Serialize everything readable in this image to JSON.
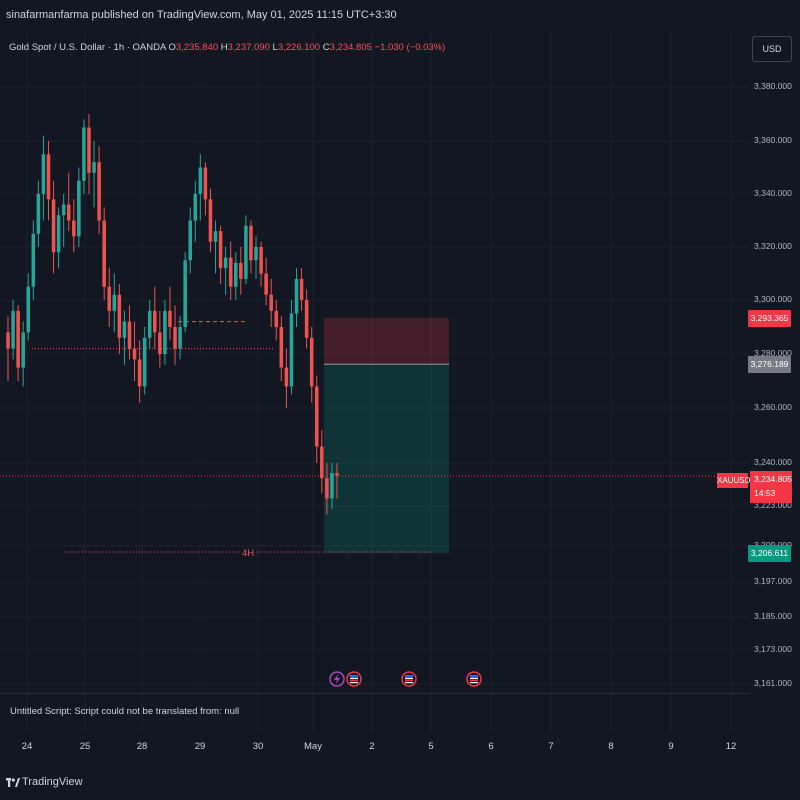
{
  "publisher": "sinafarmanfarma published on TradingView.com, May 01, 2025 11:15 UTC+3:30",
  "legend": {
    "title": "Gold Spot / U.S. Dollar · 1h · OANDA",
    "o_label": "O",
    "o_value": "3,235.840",
    "h_label": "H",
    "h_value": "3,237.090",
    "l_label": "L",
    "l_value": "3,226.100",
    "c_label": "C",
    "c_value": "3,234.805",
    "change": "−1.030 (−0.03%)"
  },
  "currency_button": "USD",
  "script_message": "Untitled Script: Script could not be translated from: null",
  "brand": "TradingView",
  "annotation_4h": "4H",
  "symbol_tag": "XAUUSD",
  "price_tag": {
    "price": "3,234.805",
    "countdown": "14:53"
  },
  "level_tags": [
    {
      "label": "3,293.365",
      "color": "#f23645"
    },
    {
      "label": "3,276.189",
      "color": "#787b86"
    },
    {
      "label": "3,206.611",
      "color": "#089981"
    }
  ],
  "colors": {
    "up": "#26a69a",
    "down": "#ef5350",
    "background": "#131722",
    "grid": "#1e222d"
  },
  "chart_data": {
    "type": "candlestick",
    "title": "Gold Spot / U.S. Dollar · 1h · OANDA",
    "y_ticks": [
      "3,380.000",
      "3,360.000",
      "3,340.000",
      "3,320.000",
      "3,300.000",
      "3,280.000",
      "3,260.000",
      "3,240.000",
      "3,223.000",
      "3,209.000",
      "3,197.000",
      "3,185.000",
      "3,173.000",
      "3,161.000"
    ],
    "x_ticks": [
      "24",
      "25",
      "28",
      "29",
      "30",
      "May",
      "2",
      "5",
      "6",
      "7",
      "8",
      "9",
      "12"
    ],
    "ylim": [
      3161,
      3386
    ],
    "last_price": 3234.805,
    "position": {
      "stop": 3293.365,
      "entry": 3276.189,
      "target": 3206.611
    },
    "levels": [
      {
        "value": 3292,
        "style": "dashed-short"
      },
      {
        "value": 3282,
        "style": "dotted"
      },
      {
        "value": 3207,
        "style": "dotted",
        "label": "4H"
      }
    ],
    "candles": [
      [
        3288,
        3294,
        3270,
        3282
      ],
      [
        3282,
        3300,
        3278,
        3296
      ],
      [
        3296,
        3298,
        3270,
        3275
      ],
      [
        3275,
        3292,
        3268,
        3288
      ],
      [
        3288,
        3310,
        3285,
        3305
      ],
      [
        3305,
        3330,
        3300,
        3325
      ],
      [
        3325,
        3345,
        3320,
        3340
      ],
      [
        3340,
        3362,
        3330,
        3355
      ],
      [
        3355,
        3360,
        3330,
        3338
      ],
      [
        3338,
        3345,
        3310,
        3318
      ],
      [
        3318,
        3335,
        3312,
        3332
      ],
      [
        3332,
        3340,
        3320,
        3336
      ],
      [
        3336,
        3348,
        3326,
        3330
      ],
      [
        3330,
        3338,
        3318,
        3324
      ],
      [
        3324,
        3350,
        3320,
        3345
      ],
      [
        3345,
        3368,
        3340,
        3365
      ],
      [
        3365,
        3370,
        3340,
        3348
      ],
      [
        3348,
        3360,
        3335,
        3352
      ],
      [
        3352,
        3358,
        3325,
        3330
      ],
      [
        3330,
        3335,
        3300,
        3305
      ],
      [
        3305,
        3312,
        3290,
        3296
      ],
      [
        3296,
        3310,
        3288,
        3302
      ],
      [
        3302,
        3306,
        3280,
        3286
      ],
      [
        3286,
        3296,
        3276,
        3292
      ],
      [
        3292,
        3298,
        3278,
        3282
      ],
      [
        3282,
        3292,
        3270,
        3278
      ],
      [
        3278,
        3285,
        3262,
        3268
      ],
      [
        3268,
        3290,
        3265,
        3286
      ],
      [
        3286,
        3300,
        3282,
        3296
      ],
      [
        3296,
        3305,
        3282,
        3288
      ],
      [
        3288,
        3296,
        3275,
        3280
      ],
      [
        3280,
        3300,
        3276,
        3296
      ],
      [
        3296,
        3305,
        3285,
        3290
      ],
      [
        3290,
        3298,
        3276,
        3282
      ],
      [
        3282,
        3294,
        3278,
        3290
      ],
      [
        3290,
        3318,
        3288,
        3315
      ],
      [
        3315,
        3335,
        3310,
        3330
      ],
      [
        3330,
        3345,
        3322,
        3340
      ],
      [
        3340,
        3355,
        3330,
        3350
      ],
      [
        3350,
        3352,
        3332,
        3338
      ],
      [
        3338,
        3342,
        3318,
        3322
      ],
      [
        3322,
        3330,
        3310,
        3326
      ],
      [
        3326,
        3328,
        3306,
        3312
      ],
      [
        3312,
        3320,
        3302,
        3316
      ],
      [
        3316,
        3322,
        3300,
        3305
      ],
      [
        3305,
        3318,
        3300,
        3314
      ],
      [
        3314,
        3320,
        3302,
        3308
      ],
      [
        3308,
        3332,
        3306,
        3328
      ],
      [
        3328,
        3330,
        3310,
        3315
      ],
      [
        3315,
        3324,
        3308,
        3320
      ],
      [
        3320,
        3322,
        3305,
        3310
      ],
      [
        3310,
        3316,
        3298,
        3302
      ],
      [
        3302,
        3308,
        3290,
        3296
      ],
      [
        3296,
        3300,
        3285,
        3290
      ],
      [
        3290,
        3294,
        3270,
        3275
      ],
      [
        3275,
        3282,
        3260,
        3268
      ],
      [
        3268,
        3300,
        3265,
        3295
      ],
      [
        3295,
        3312,
        3290,
        3308
      ],
      [
        3308,
        3312,
        3296,
        3300
      ],
      [
        3300,
        3304,
        3282,
        3286
      ],
      [
        3286,
        3290,
        3262,
        3268
      ],
      [
        3268,
        3272,
        3240,
        3246
      ],
      [
        3246,
        3252,
        3228,
        3234
      ],
      [
        3234,
        3240,
        3220,
        3226
      ],
      [
        3226,
        3240,
        3222,
        3236
      ],
      [
        3236,
        3240,
        3226,
        3235
      ]
    ]
  }
}
